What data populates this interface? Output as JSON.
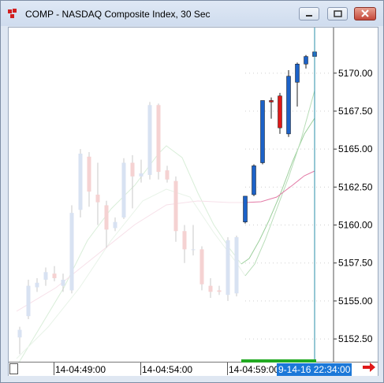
{
  "window": {
    "title": "COMP - NASDAQ Composite Index, 30 Sec",
    "colors": {
      "up": "#1c62c8",
      "down": "#e01818",
      "faded_up": "#d8e2f2",
      "faded_down": "#f5d2d2",
      "cursor_line": "#2a8fa8",
      "ma_fast": "#9ccf9c",
      "ma_slow": "#e37aa6"
    }
  },
  "chart": {
    "y_labels": [
      "5170.00",
      "5167.50",
      "5165.00",
      "5162.50",
      "5160.00",
      "5157.50",
      "5155.00",
      "5152.50"
    ],
    "x_labels": [
      "14-04:49:00",
      "14-04:54:00",
      "14-04:59:00"
    ],
    "cursor_label": "9-14-16 22:34:00"
  },
  "chart_data": {
    "type": "candlestick",
    "ylim": [
      5151.0,
      5173.0
    ],
    "candles": [
      {
        "o": 5152.6,
        "h": 5153.3,
        "l": 5151.5,
        "c": 5153.1,
        "hl": false
      },
      {
        "o": 5154.0,
        "h": 5156.4,
        "l": 5153.8,
        "c": 5156.0,
        "hl": false
      },
      {
        "o": 5155.9,
        "h": 5156.5,
        "l": 5155.6,
        "c": 5156.2,
        "hl": false
      },
      {
        "o": 5156.4,
        "h": 5157.2,
        "l": 5156.0,
        "c": 5156.9,
        "hl": false
      },
      {
        "o": 5156.8,
        "h": 5157.3,
        "l": 5156.3,
        "c": 5156.5,
        "hl": false
      },
      {
        "o": 5156.0,
        "h": 5156.8,
        "l": 5155.6,
        "c": 5156.4,
        "hl": false
      },
      {
        "o": 5155.7,
        "h": 5161.3,
        "l": 5155.5,
        "c": 5160.8,
        "hl": false
      },
      {
        "o": 5161.0,
        "h": 5165.0,
        "l": 5160.5,
        "c": 5164.7,
        "hl": false
      },
      {
        "o": 5164.5,
        "h": 5164.8,
        "l": 5161.2,
        "c": 5162.2,
        "hl": false
      },
      {
        "o": 5162.0,
        "h": 5164.1,
        "l": 5160.0,
        "c": 5161.5,
        "hl": false
      },
      {
        "o": 5161.3,
        "h": 5161.6,
        "l": 5158.5,
        "c": 5159.7,
        "hl": false
      },
      {
        "o": 5159.8,
        "h": 5160.5,
        "l": 5159.6,
        "c": 5160.2,
        "hl": false
      },
      {
        "o": 5160.5,
        "h": 5164.4,
        "l": 5160.4,
        "c": 5164.1,
        "hl": false
      },
      {
        "o": 5164.1,
        "h": 5164.6,
        "l": 5161.1,
        "c": 5163.2,
        "hl": false
      },
      {
        "o": 5163.2,
        "h": 5164.3,
        "l": 5162.8,
        "c": 5163.4,
        "hl": false
      },
      {
        "o": 5163.3,
        "h": 5168.1,
        "l": 5163.0,
        "c": 5167.9,
        "hl": false
      },
      {
        "o": 5167.9,
        "h": 5168.0,
        "l": 5163.0,
        "c": 5163.5,
        "hl": false
      },
      {
        "o": 5163.6,
        "h": 5163.9,
        "l": 5162.8,
        "c": 5163.0,
        "hl": false
      },
      {
        "o": 5162.9,
        "h": 5163.2,
        "l": 5158.9,
        "c": 5159.6,
        "hl": false
      },
      {
        "o": 5159.6,
        "h": 5160.0,
        "l": 5157.5,
        "c": 5158.4,
        "hl": false
      },
      {
        "o": 5158.4,
        "h": 5160.0,
        "l": 5158.0,
        "c": 5158.4,
        "hl": false
      },
      {
        "o": 5158.4,
        "h": 5158.6,
        "l": 5155.7,
        "c": 5156.1,
        "hl": false
      },
      {
        "o": 5156.0,
        "h": 5156.5,
        "l": 5155.2,
        "c": 5155.6,
        "hl": false
      },
      {
        "o": 5155.7,
        "h": 5156.0,
        "l": 5155.4,
        "c": 5155.6,
        "hl": false
      },
      {
        "o": 5155.4,
        "h": 5159.2,
        "l": 5155.0,
        "c": 5159.0,
        "hl": false
      },
      {
        "o": 5155.5,
        "h": 5159.3,
        "l": 5155.3,
        "c": 5159.2,
        "hl": false
      },
      {
        "o": 5160.2,
        "h": 5161.9,
        "l": 5160.1,
        "c": 5161.9,
        "hl": true
      },
      {
        "o": 5162.0,
        "h": 5164.0,
        "l": 5161.9,
        "c": 5163.9,
        "hl": true
      },
      {
        "o": 5164.1,
        "h": 5168.2,
        "l": 5164.0,
        "c": 5168.2,
        "hl": true
      },
      {
        "o": 5168.2,
        "h": 5168.4,
        "l": 5167.0,
        "c": 5168.1,
        "hl": true
      },
      {
        "o": 5168.5,
        "h": 5168.7,
        "l": 5166.0,
        "c": 5166.4,
        "hl": true
      },
      {
        "o": 5166.0,
        "h": 5170.2,
        "l": 5165.8,
        "c": 5169.8,
        "hl": true
      },
      {
        "o": 5169.4,
        "h": 5170.7,
        "l": 5167.8,
        "c": 5170.6,
        "hl": true
      },
      {
        "o": 5170.6,
        "h": 5171.2,
        "l": 5170.3,
        "c": 5171.1,
        "hl": true
      },
      {
        "o": 5171.1,
        "h": 5171.8,
        "l": 5170.8,
        "c": 5171.4,
        "hl": true
      }
    ]
  }
}
